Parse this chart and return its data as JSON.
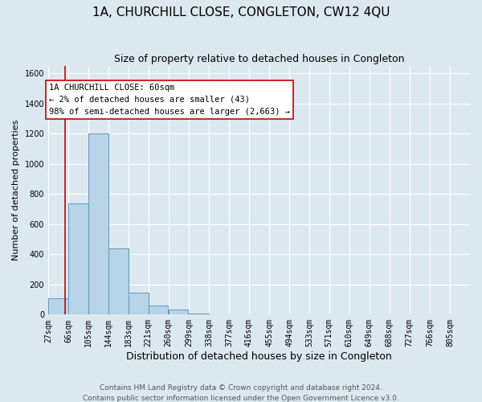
{
  "title": "1A, CHURCHILL CLOSE, CONGLETON, CW12 4QU",
  "subtitle": "Size of property relative to detached houses in Congleton",
  "xlabel": "Distribution of detached houses by size in Congleton",
  "ylabel": "Number of detached properties",
  "bar_heights": [
    110,
    735,
    1200,
    440,
    145,
    60,
    35,
    5,
    0,
    0,
    0,
    0,
    0,
    0,
    0,
    0,
    0,
    0,
    0,
    0,
    0
  ],
  "bar_edges": [
    27,
    66,
    105,
    144,
    183,
    221,
    260,
    299,
    338,
    377,
    416,
    455,
    494,
    533,
    571,
    610,
    649,
    688,
    727,
    766,
    805
  ],
  "bin_width": 39,
  "bar_color": "#b8d4e8",
  "bar_edge_color": "#5a9abf",
  "background_color": "#dce8f0",
  "grid_color": "#ffffff",
  "red_line_x": 60,
  "annotation_text": "1A CHURCHILL CLOSE: 60sqm\n← 2% of detached houses are smaller (43)\n98% of semi-detached houses are larger (2,663) →",
  "annotation_box_color": "#ffffff",
  "annotation_box_edge_color": "#cc0000",
  "ylim": [
    0,
    1650
  ],
  "yticks": [
    0,
    200,
    400,
    600,
    800,
    1000,
    1200,
    1400,
    1600
  ],
  "footer_text": "Contains HM Land Registry data © Crown copyright and database right 2024.\nContains public sector information licensed under the Open Government Licence v3.0.",
  "title_fontsize": 11,
  "subtitle_fontsize": 9,
  "xlabel_fontsize": 9,
  "ylabel_fontsize": 8,
  "tick_fontsize": 7,
  "annotation_fontsize": 7.5,
  "footer_fontsize": 6.5
}
